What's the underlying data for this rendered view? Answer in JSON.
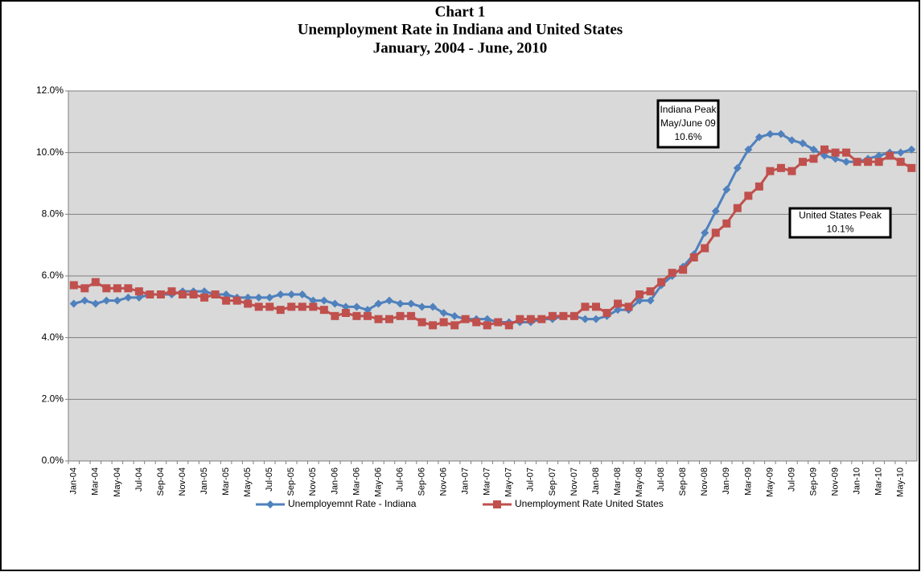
{
  "chart_data": {
    "type": "line",
    "title": [
      "Chart 1",
      "Unemployment Rate in Indiana and United States",
      "January, 2004 - June, 2010"
    ],
    "categories": [
      "Jan-04",
      null,
      "Mar-04",
      null,
      "May-04",
      null,
      "Jul-04",
      null,
      "Sep-04",
      null,
      "Nov-04",
      null,
      "Jan-05",
      null,
      "Mar-05",
      null,
      "May-05",
      null,
      "Jul-05",
      null,
      "Sep-05",
      null,
      "Nov-05",
      null,
      "Jan-06",
      null,
      "Mar-06",
      null,
      "May-06",
      null,
      "Jul-06",
      null,
      "Sep-06",
      null,
      "Nov-06",
      null,
      "Jan-07",
      null,
      "Mar-07",
      null,
      "May-07",
      null,
      "Jul-07",
      null,
      "Sep-07",
      null,
      "Nov-07",
      null,
      "Jan-08",
      null,
      "Mar-08",
      null,
      "May-08",
      null,
      "Jul-08",
      null,
      "Sep-08",
      null,
      "Nov-08",
      null,
      "Jan-09",
      null,
      "Mar-09",
      null,
      "May-09",
      null,
      "Jul-09",
      null,
      "Sep-09",
      null,
      "Nov-09",
      null,
      "Jan-10",
      null,
      "Mar-10",
      null,
      "May-10",
      null
    ],
    "series": [
      {
        "name": "Unemployemnt Rate - Indiana",
        "color": "#4f81bd",
        "marker": "diamond",
        "values": [
          5.1,
          5.2,
          5.1,
          5.2,
          5.2,
          5.3,
          5.3,
          5.4,
          5.4,
          5.4,
          5.5,
          5.5,
          5.5,
          5.4,
          5.4,
          5.3,
          5.3,
          5.3,
          5.3,
          5.4,
          5.4,
          5.4,
          5.2,
          5.2,
          5.1,
          5.0,
          5.0,
          4.9,
          5.1,
          5.2,
          5.1,
          5.1,
          5.0,
          5.0,
          4.8,
          4.7,
          4.6,
          4.6,
          4.6,
          4.5,
          4.5,
          4.5,
          4.5,
          4.6,
          4.6,
          4.7,
          4.7,
          4.6,
          4.6,
          4.7,
          4.9,
          4.9,
          5.2,
          5.2,
          5.7,
          6.0,
          6.3,
          6.7,
          7.4,
          8.1,
          8.8,
          9.5,
          10.1,
          10.5,
          10.6,
          10.6,
          10.4,
          10.3,
          10.1,
          9.9,
          9.8,
          9.7,
          9.7,
          9.8,
          9.9,
          10.0,
          10.0,
          10.1
        ]
      },
      {
        "name": "Unemployment Rate United States",
        "color": "#c0504d",
        "marker": "square",
        "values": [
          5.7,
          5.6,
          5.8,
          5.6,
          5.6,
          5.6,
          5.5,
          5.4,
          5.4,
          5.5,
          5.4,
          5.4,
          5.3,
          5.4,
          5.2,
          5.2,
          5.1,
          5.0,
          5.0,
          4.9,
          5.0,
          5.0,
          5.0,
          4.9,
          4.7,
          4.8,
          4.7,
          4.7,
          4.6,
          4.6,
          4.7,
          4.7,
          4.5,
          4.4,
          4.5,
          4.4,
          4.6,
          4.5,
          4.4,
          4.5,
          4.4,
          4.6,
          4.6,
          4.6,
          4.7,
          4.7,
          4.7,
          5.0,
          5.0,
          4.8,
          5.1,
          5.0,
          5.4,
          5.5,
          5.8,
          6.1,
          6.2,
          6.6,
          6.9,
          7.4,
          7.7,
          8.2,
          8.6,
          8.9,
          9.4,
          9.5,
          9.4,
          9.7,
          9.8,
          10.1,
          10.0,
          10.0,
          9.7,
          9.7,
          9.7,
          9.9,
          9.7,
          9.5
        ]
      }
    ],
    "ylim": [
      0,
      12
    ],
    "yticks": [
      {
        "value": 0,
        "label": "0.0%"
      },
      {
        "value": 2,
        "label": "2.0%"
      },
      {
        "value": 4,
        "label": "4.0%"
      },
      {
        "value": 6,
        "label": "6.0%"
      },
      {
        "value": 8,
        "label": "8.0%"
      },
      {
        "value": 10,
        "label": "10.0%"
      },
      {
        "value": 12,
        "label": "12.0%"
      }
    ],
    "grid": true,
    "legend": "bottom",
    "annotations": [
      {
        "lines": [
          "Indiana Peak",
          "May/June 09",
          "10.6%"
        ]
      },
      {
        "lines": [
          "United States Peak",
          "10.1%"
        ]
      }
    ]
  }
}
